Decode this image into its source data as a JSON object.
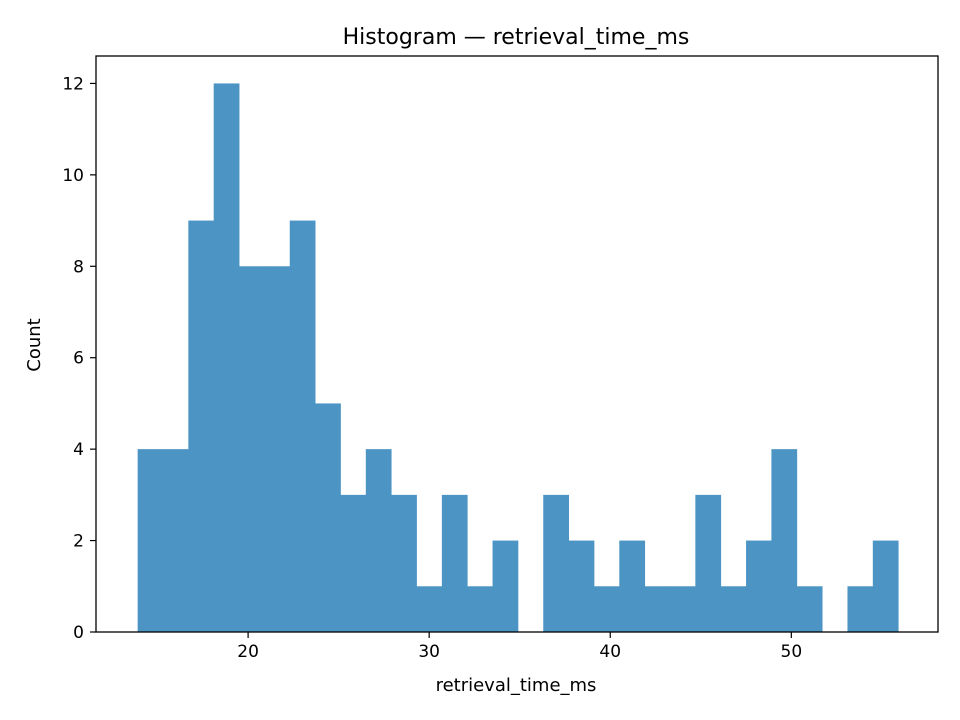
{
  "chart_data": {
    "type": "bar",
    "title": "Histogram — retrieval_time_ms",
    "xlabel": "retrieval_time_ms",
    "ylabel": "Count",
    "bin_start": 13.9,
    "bin_width": 1.4,
    "counts": [
      4,
      4,
      9,
      12,
      8,
      8,
      9,
      5,
      3,
      4,
      3,
      1,
      3,
      1,
      2,
      0,
      3,
      2,
      1,
      2,
      1,
      1,
      3,
      1,
      2,
      4,
      1,
      0,
      1,
      2
    ],
    "xlim": [
      11.6,
      58.1
    ],
    "ylim": [
      0,
      12.6
    ],
    "xticks": [
      20,
      30,
      40,
      50
    ],
    "yticks": [
      0,
      2,
      4,
      6,
      8,
      10,
      12
    ],
    "bar_color": "#4c94c4",
    "grid": false,
    "legend": "none"
  }
}
